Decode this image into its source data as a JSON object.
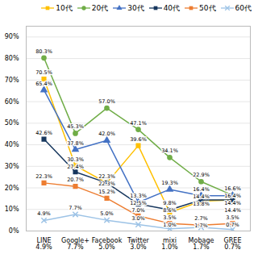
{
  "chart_data": {
    "type": "line",
    "categories": [
      "LINE\n4.9%",
      "Google+\n7.7%",
      "Facebook\n5.0%",
      "Twitter\n3.0%",
      "mixi\n1.0%",
      "Mobage\n1.7%",
      "GREE\n0.7%"
    ],
    "series": [
      {
        "name": "10代",
        "color": "#FFC000",
        "marker": "square",
        "values": [
          70.5,
          30.3,
          22.3,
          39.6,
          8.6,
          13.8,
          14.4
        ],
        "value_labels": [
          "70.5%",
          "30.3%",
          "22.3%",
          "39.6%",
          "8.6%",
          "13.8%",
          "14.4%"
        ]
      },
      {
        "name": "20代",
        "color": "#70AD47",
        "marker": "circle",
        "values": [
          80.3,
          45.3,
          57.0,
          47.1,
          34.1,
          22.9,
          16.6
        ],
        "value_labels": [
          "80.3%",
          "45.3%",
          "57.0%",
          "47.1%",
          "34.1%",
          "22.9%",
          "16.6%"
        ]
      },
      {
        "name": "30代",
        "color": "#4472C4",
        "marker": "triangle",
        "values": [
          65.4,
          37.8,
          42.0,
          13.3,
          19.3,
          16.4,
          16.4
        ],
        "value_labels": [
          "65.4%",
          "37.8%",
          "42.0%",
          "13.3%",
          "19.3%",
          "16.4%",
          "16.4%"
        ]
      },
      {
        "name": "40代",
        "color": "#17375E",
        "marker": "square",
        "values": [
          42.6,
          27.4,
          22.3,
          12.5,
          9.8,
          14.4,
          14.4
        ],
        "value_labels": [
          "42.6%",
          "27.4%",
          "22.3%",
          "12.5%",
          "9.8%",
          "14.4%",
          "14.4%"
        ]
      },
      {
        "name": "50代",
        "color": "#ED7D31",
        "marker": "square",
        "values": [
          22.3,
          20.7,
          15.2,
          7.0,
          3.5,
          2.7,
          3.5
        ],
        "value_labels": [
          "22.3%",
          "20.7%",
          "15.2%",
          "7.0%",
          "3.5%",
          "2.7%",
          "3.5%"
        ]
      },
      {
        "name": "60代",
        "color": "#9DC3E6",
        "marker": "x",
        "values": [
          4.9,
          7.7,
          5.0,
          3.0,
          1.0,
          1.7,
          0.7
        ],
        "value_labels": [
          "4.9%",
          "7.7%",
          "5.0%",
          "3.0%",
          "1.0%",
          "1.7%",
          "0.7%"
        ]
      }
    ],
    "ylim": [
      0,
      95
    ],
    "yticks": [
      {
        "value": 0,
        "label": "0%"
      },
      {
        "value": 10,
        "label": "10%"
      },
      {
        "value": 20,
        "label": "20%"
      },
      {
        "value": 30,
        "label": "30%"
      },
      {
        "value": 40,
        "label": "40%"
      },
      {
        "value": 50,
        "label": "50%"
      },
      {
        "value": 60,
        "label": "60%"
      },
      {
        "value": 70,
        "label": "70%"
      },
      {
        "value": 80,
        "label": "80%"
      },
      {
        "value": 90,
        "label": "90%"
      }
    ],
    "grid": true,
    "legend": "upper right",
    "data_labels": true
  }
}
